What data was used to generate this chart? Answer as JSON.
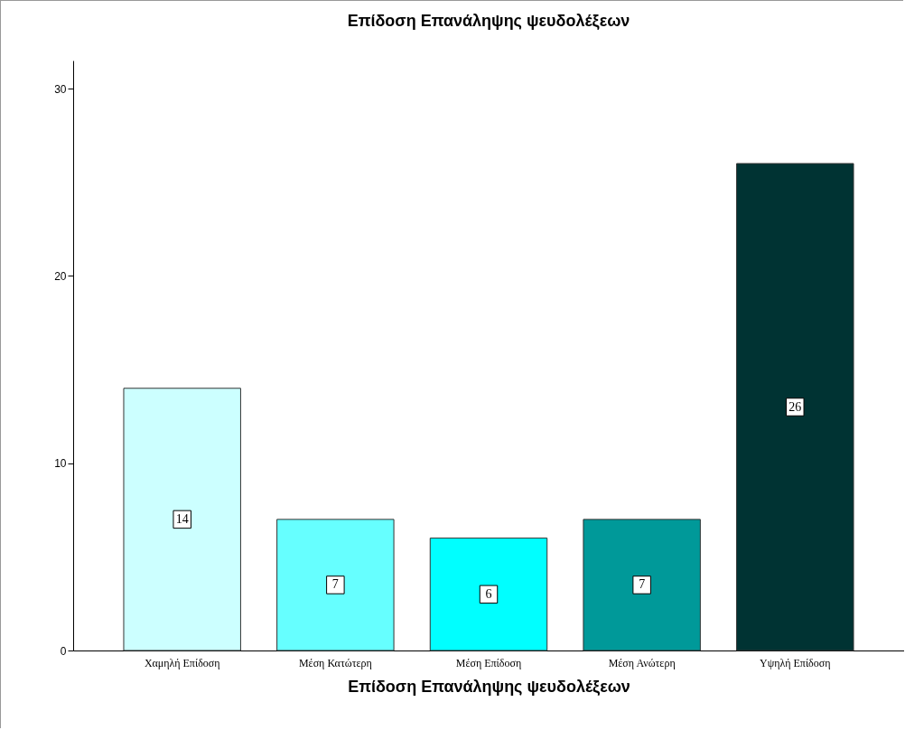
{
  "chart_data": {
    "type": "bar",
    "title": "Επίδοση Επανάληψης ψευδολέξεων",
    "xlabel": "Επίδοση Επανάληψης ψευδολέξεων",
    "categories": [
      "Χαμηλή Επίδοση",
      "Μέση Κατώτερη",
      "Μέση Επίδοση",
      "Μέση Ανώτερη",
      "Υψηλή Επίδοση"
    ],
    "values": [
      14,
      7,
      6,
      7,
      26
    ],
    "colors": [
      "#ccffff",
      "#66ffff",
      "#00ffff",
      "#009999",
      "#003333"
    ],
    "ylim": [
      0,
      31.5
    ],
    "yticks": [
      0,
      10,
      20,
      30
    ],
    "data_labels": true
  }
}
